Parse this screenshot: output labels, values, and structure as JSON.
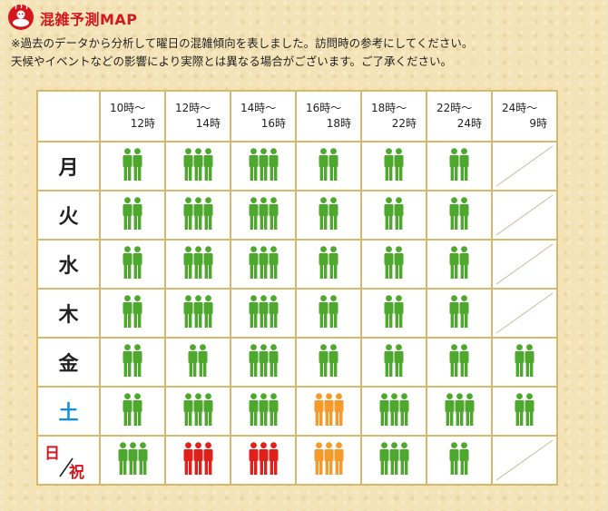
{
  "header": {
    "title": "混雑予測MAP",
    "notes": [
      "※過去のデータから分析して曜日の混雑傾向を表しました。訪問時の参考にしてください。",
      "天候やイベントなどの影響により実際とは異なる場合がございます。ご了承ください。"
    ]
  },
  "colors": {
    "low": "#4ea82d",
    "medium": "#f39a2b",
    "high": "#e0211b"
  },
  "time_slots": [
    {
      "start": "10時〜",
      "end": "12時"
    },
    {
      "start": "12時〜",
      "end": "14時"
    },
    {
      "start": "14時〜",
      "end": "16時"
    },
    {
      "start": "16時〜",
      "end": "18時"
    },
    {
      "start": "18時〜",
      "end": "22時"
    },
    {
      "start": "22時〜",
      "end": "24時"
    },
    {
      "start": "24時〜",
      "end": "9時"
    }
  ],
  "days": [
    {
      "label": "月",
      "type": "weekday",
      "cells": [
        {
          "people": 2,
          "level": "low"
        },
        {
          "people": 3,
          "level": "low"
        },
        {
          "people": 3,
          "level": "low"
        },
        {
          "people": 2,
          "level": "low"
        },
        {
          "people": 2,
          "level": "low"
        },
        {
          "people": 2,
          "level": "low"
        },
        {
          "people": 0,
          "level": "closed"
        }
      ]
    },
    {
      "label": "火",
      "type": "weekday",
      "cells": [
        {
          "people": 2,
          "level": "low"
        },
        {
          "people": 3,
          "level": "low"
        },
        {
          "people": 3,
          "level": "low"
        },
        {
          "people": 2,
          "level": "low"
        },
        {
          "people": 2,
          "level": "low"
        },
        {
          "people": 2,
          "level": "low"
        },
        {
          "people": 0,
          "level": "closed"
        }
      ]
    },
    {
      "label": "水",
      "type": "weekday",
      "cells": [
        {
          "people": 2,
          "level": "low"
        },
        {
          "people": 3,
          "level": "low"
        },
        {
          "people": 3,
          "level": "low"
        },
        {
          "people": 2,
          "level": "low"
        },
        {
          "people": 2,
          "level": "low"
        },
        {
          "people": 2,
          "level": "low"
        },
        {
          "people": 0,
          "level": "closed"
        }
      ]
    },
    {
      "label": "木",
      "type": "weekday",
      "cells": [
        {
          "people": 2,
          "level": "low"
        },
        {
          "people": 3,
          "level": "low"
        },
        {
          "people": 3,
          "level": "low"
        },
        {
          "people": 2,
          "level": "low"
        },
        {
          "people": 2,
          "level": "low"
        },
        {
          "people": 2,
          "level": "low"
        },
        {
          "people": 0,
          "level": "closed"
        }
      ]
    },
    {
      "label": "金",
      "type": "weekday",
      "cells": [
        {
          "people": 2,
          "level": "low"
        },
        {
          "people": 2,
          "level": "low"
        },
        {
          "people": 3,
          "level": "low"
        },
        {
          "people": 2,
          "level": "low"
        },
        {
          "people": 2,
          "level": "low"
        },
        {
          "people": 2,
          "level": "low"
        },
        {
          "people": 2,
          "level": "low"
        }
      ]
    },
    {
      "label": "土",
      "type": "saturday",
      "cells": [
        {
          "people": 2,
          "level": "low"
        },
        {
          "people": 3,
          "level": "low"
        },
        {
          "people": 3,
          "level": "low"
        },
        {
          "people": 3,
          "level": "medium"
        },
        {
          "people": 3,
          "level": "low"
        },
        {
          "people": 3,
          "level": "low"
        },
        {
          "people": 2,
          "level": "low"
        }
      ]
    },
    {
      "label": "日",
      "label2": "祝",
      "type": "holiday",
      "cells": [
        {
          "people": 3,
          "level": "low"
        },
        {
          "people": 3,
          "level": "high"
        },
        {
          "people": 3,
          "level": "high"
        },
        {
          "people": 3,
          "level": "medium"
        },
        {
          "people": 3,
          "level": "low"
        },
        {
          "people": 2,
          "level": "low"
        },
        {
          "people": 0,
          "level": "closed"
        }
      ]
    }
  ]
}
